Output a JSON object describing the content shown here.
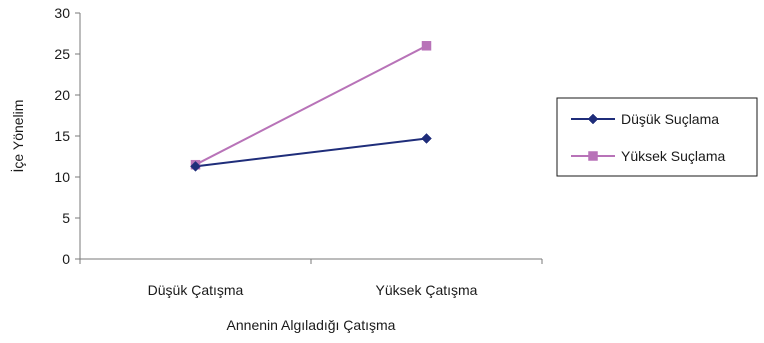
{
  "chart_data": {
    "type": "line",
    "title": "",
    "xlabel": "Annenin Algıladığı Çatışma",
    "ylabel": "İçe Yönelim",
    "categories": [
      "Düşük Çatışma",
      "Yüksek Çatışma"
    ],
    "ylim": [
      0,
      30
    ],
    "yticks": [
      0,
      5,
      10,
      15,
      20,
      25,
      30
    ],
    "grid": false,
    "legend_position": "right",
    "series": [
      {
        "name": "Düşük Suçlama",
        "values": [
          11.3,
          14.7
        ],
        "color": "#1f2d7a",
        "marker": "diamond"
      },
      {
        "name": "Yüksek Suçlama",
        "values": [
          11.5,
          26.0
        ],
        "color": "#b873b8",
        "marker": "square"
      }
    ]
  }
}
